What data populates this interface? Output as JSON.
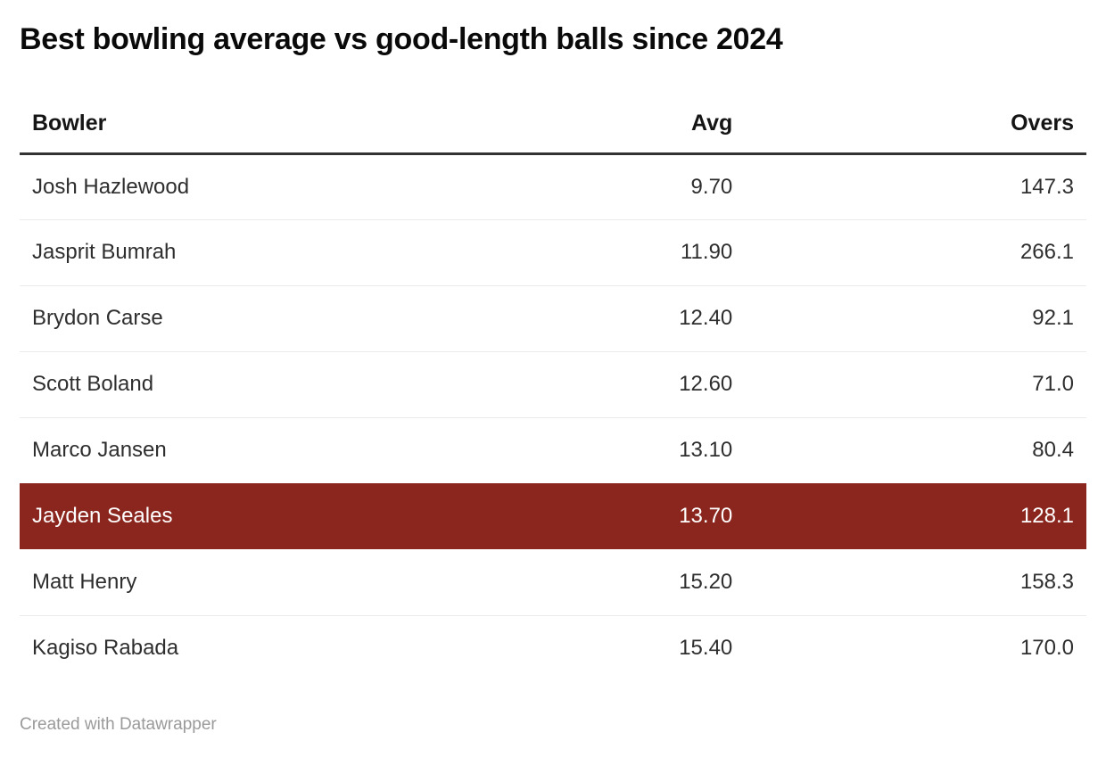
{
  "title": "Best bowling average vs good-length balls since 2024",
  "chart_data": {
    "type": "table",
    "title": "Best bowling average vs good-length balls since 2024",
    "columns": [
      "Bowler",
      "Avg",
      "Overs"
    ],
    "column_align": [
      "left",
      "right",
      "right"
    ],
    "rows": [
      [
        "Josh Hazlewood",
        "9.70",
        "147.3"
      ],
      [
        "Jasprit Bumrah",
        "11.90",
        "266.1"
      ],
      [
        "Brydon Carse",
        "12.40",
        "92.1"
      ],
      [
        "Scott Boland",
        "12.60",
        "71.0"
      ],
      [
        "Marco Jansen",
        "13.10",
        "80.4"
      ],
      [
        "Jayden Seales",
        "13.70",
        "128.1"
      ],
      [
        "Matt Henry",
        "15.20",
        "158.3"
      ],
      [
        "Kagiso Rabada",
        "15.40",
        "170.0"
      ]
    ],
    "highlighted_row": "Jayden Seales"
  },
  "footer": {
    "credit": "Created with Datawrapper"
  },
  "colors": {
    "highlight_bg": "#8b261e",
    "highlight_text": "#ffffff",
    "header_border": "#333333",
    "row_divider": "#ebebeb",
    "body_text": "#2e2e2e",
    "title_text": "#0a0a0a",
    "footer_text": "#9a9a9a"
  }
}
